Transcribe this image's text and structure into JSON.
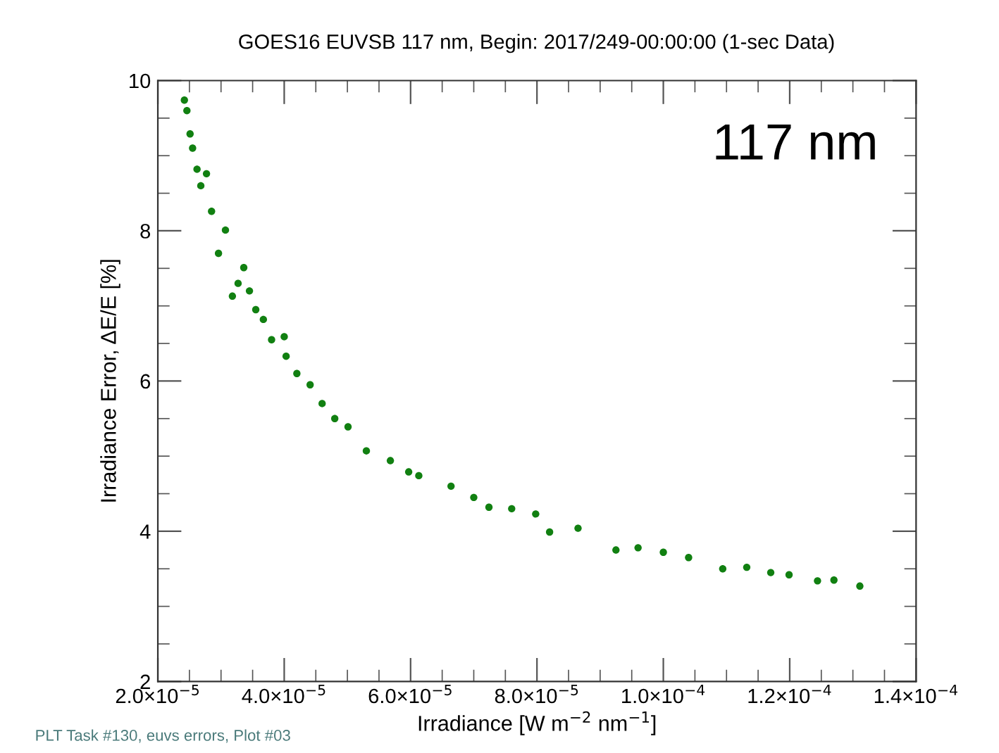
{
  "chart_data": {
    "type": "scatter",
    "title": "GOES16 EUVSB 117 nm, Begin: 2017/249-00:00:00 (1-sec Data)",
    "xlabel": "Irradiance [W m$^{−2}$ nm$^{−1}$]",
    "ylabel": "Irradiance Error, ΔE/E [%]",
    "annotations": [
      "117 nm",
      "PLT Task #130, euvs errors, Plot #03"
    ],
    "x": [
      2.42e-05,
      2.46e-05,
      2.51e-05,
      2.55e-05,
      2.62e-05,
      2.68e-05,
      2.77e-05,
      2.85e-05,
      2.96e-05,
      3.07e-05,
      3.18e-05,
      3.27e-05,
      3.36e-05,
      3.45e-05,
      3.55e-05,
      3.67e-05,
      3.8e-05,
      4e-05,
      4.03e-05,
      4.2e-05,
      4.41e-05,
      4.6e-05,
      4.8e-05,
      5.01e-05,
      5.3e-05,
      5.68e-05,
      5.97e-05,
      6.13e-05,
      6.64e-05,
      7e-05,
      7.24e-05,
      7.6e-05,
      7.98e-05,
      8.2e-05,
      8.65e-05,
      9.25e-05,
      9.6e-05,
      0.0001,
      0.000104,
      0.0001094,
      0.0001132,
      0.000117,
      0.0001199,
      0.0001244,
      0.000127,
      0.0001311
    ],
    "values": [
      9.74,
      9.6,
      9.29,
      9.1,
      8.82,
      8.6,
      8.76,
      8.26,
      7.7,
      8.01,
      7.13,
      7.3,
      7.51,
      7.2,
      6.95,
      6.82,
      6.55,
      6.59,
      6.33,
      6.1,
      5.95,
      5.7,
      5.5,
      5.39,
      5.07,
      4.94,
      4.79,
      4.74,
      4.6,
      4.45,
      4.32,
      4.3,
      4.23,
      3.99,
      4.04,
      3.75,
      3.78,
      3.72,
      3.65,
      3.5,
      3.52,
      3.45,
      3.42,
      3.34,
      3.35,
      3.27
    ],
    "color": "#118011",
    "marker": "circle",
    "xlim": [
      2e-05,
      0.00014
    ],
    "ylim": [
      2,
      10
    ],
    "xticks": [
      {
        "value": 2e-05,
        "label": "2.0×10$^{−5}$"
      },
      {
        "value": 4e-05,
        "label": "4.0×10$^{−5}$"
      },
      {
        "value": 6e-05,
        "label": "6.0×10$^{−5}$"
      },
      {
        "value": 8e-05,
        "label": "8.0×10$^{−5}$"
      },
      {
        "value": 0.0001,
        "label": "1.0×10$^{−4}$"
      },
      {
        "value": 0.00012,
        "label": "1.2×10$^{−4}$"
      },
      {
        "value": 0.00014,
        "label": "1.4×10$^{−4}$"
      }
    ],
    "yticks": [
      2,
      4,
      6,
      8,
      10
    ],
    "grid": false,
    "legend": false
  }
}
